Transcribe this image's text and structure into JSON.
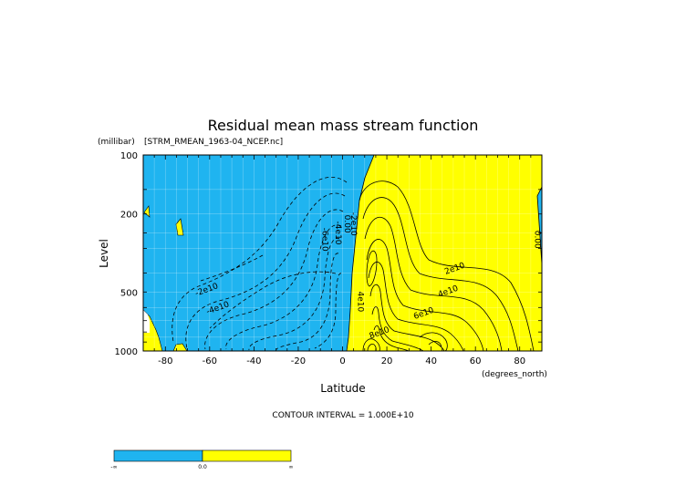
{
  "chart_data": {
    "type": "contour",
    "title": "Residual mean mass stream function",
    "subtitle": "[STRM_RMEAN_1963-04_NCEP.nc]",
    "xlabel": "Latitude",
    "xunits": "(degrees_north)",
    "ylabel": "Level",
    "yunits": "(millibar)",
    "x_ticks": [
      -80,
      -60,
      -40,
      -20,
      0,
      20,
      40,
      60,
      80
    ],
    "x_tick_labels": [
      "-80",
      "-60",
      "-40",
      "-20",
      "0",
      "20",
      "40",
      "60",
      "80"
    ],
    "xlim": [
      -90,
      90
    ],
    "y_ticks": [
      100,
      200,
      500,
      1000
    ],
    "y_tick_labels": [
      "100",
      "200",
      "500",
      "1000"
    ],
    "ylim": [
      1000,
      100
    ],
    "y_scale": "log",
    "grid": true,
    "contour_interval_label": "CONTOUR INTERVAL = 1.000E+10",
    "contour_labels": [
      {
        "text": "-2e10",
        "lat": -61,
        "p": 500
      },
      {
        "text": "-4e10",
        "lat": -56,
        "p": 620
      },
      {
        "text": "-6e10",
        "lat": -9,
        "p": 270
      },
      {
        "text": "-4e10",
        "lat": -3,
        "p": 250
      },
      {
        "text": "-2e10",
        "lat": 4,
        "p": 225
      },
      {
        "text": "0.00",
        "lat": 1,
        "p": 225
      },
      {
        "text": "2e10",
        "lat": 51,
        "p": 390
      },
      {
        "text": "4e10",
        "lat": 48,
        "p": 510
      },
      {
        "text": "6e10",
        "lat": 37,
        "p": 660
      },
      {
        "text": "8e10",
        "lat": 17,
        "p": 830
      },
      {
        "text": "4e10",
        "lat": 7,
        "p": 560
      },
      {
        "text": "0.00",
        "lat": 87,
        "p": 270
      }
    ],
    "fill_colors": {
      "negative": "#1fb4f0",
      "positive": "#ffff00"
    },
    "colorbar": {
      "labels": [
        "-∞",
        "0.0",
        "∞"
      ]
    }
  }
}
